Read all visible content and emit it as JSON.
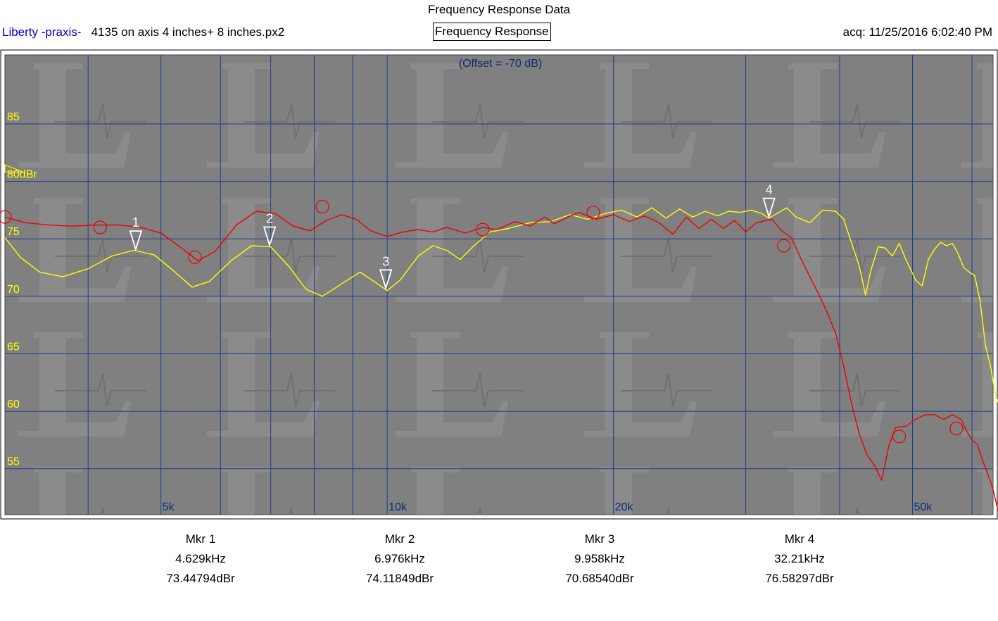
{
  "header": {
    "title": "Frequency Response Data",
    "program": "Liberty -praxis-",
    "file": "4135 on axis 4 inches+ 8 inches.px2",
    "tab_label": "Frequency Response",
    "acq": "acq: 11/25/2016 6:02:40 PM"
  },
  "chart_data": {
    "type": "line",
    "title": "Frequency Response",
    "offset_note": "(Offset = -70 dB)",
    "x_scale": "log",
    "x_unit": "Hz",
    "xlim": [
      3100,
      64000
    ],
    "ylim": [
      51,
      91
    ],
    "x_tick_labels": [
      {
        "x": 5000,
        "label": "5k"
      },
      {
        "x": 10000,
        "label": "10k"
      },
      {
        "x": 20000,
        "label": "20k"
      },
      {
        "x": 50000,
        "label": "50k"
      }
    ],
    "x_gridlines": [
      4000,
      5000,
      6000,
      7000,
      8000,
      9000,
      10000,
      20000,
      30000,
      40000,
      50000,
      60000
    ],
    "y_ticks": [
      {
        "y": 85,
        "label": "85"
      },
      {
        "y": 80,
        "label": "80dBr"
      },
      {
        "y": 75,
        "label": "75"
      },
      {
        "y": 70,
        "label": "70"
      },
      {
        "y": 65,
        "label": "65"
      },
      {
        "y": 60,
        "label": "60"
      },
      {
        "y": 55,
        "label": "55"
      }
    ],
    "reference_level": 81,
    "grid": true,
    "colors": {
      "background": "#808080",
      "grid": "#1c3c8c",
      "y_labels": "#ffff00",
      "x_labels": "#0a2e6e"
    },
    "series": [
      {
        "color": "#ffff00",
        "points": [
          [
            3100,
            75.1
          ],
          [
            3250,
            73.4
          ],
          [
            3450,
            72.1
          ],
          [
            3700,
            71.7
          ],
          [
            4000,
            72.4
          ],
          [
            4300,
            73.5
          ],
          [
            4600,
            74.0
          ],
          [
            4900,
            73.6
          ],
          [
            5200,
            72.2
          ],
          [
            5500,
            70.8
          ],
          [
            5800,
            71.3
          ],
          [
            6200,
            73.1
          ],
          [
            6600,
            74.4
          ],
          [
            7000,
            74.3
          ],
          [
            7400,
            72.6
          ],
          [
            7800,
            70.6
          ],
          [
            8200,
            70.0
          ],
          [
            8700,
            71.1
          ],
          [
            9200,
            72.1
          ],
          [
            9600,
            71.3
          ],
          [
            10000,
            70.5
          ],
          [
            10400,
            71.4
          ],
          [
            11000,
            73.5
          ],
          [
            11500,
            74.4
          ],
          [
            12000,
            74.0
          ],
          [
            12500,
            73.2
          ],
          [
            13000,
            74.3
          ],
          [
            13700,
            75.6
          ],
          [
            14500,
            75.9
          ],
          [
            15500,
            76.4
          ],
          [
            16500,
            76.5
          ],
          [
            17500,
            77.1
          ],
          [
            18500,
            76.7
          ],
          [
            19500,
            77.2
          ],
          [
            20500,
            77.5
          ],
          [
            21500,
            76.9
          ],
          [
            22500,
            77.7
          ],
          [
            23500,
            76.8
          ],
          [
            24500,
            77.6
          ],
          [
            25500,
            76.9
          ],
          [
            26500,
            77.4
          ],
          [
            27500,
            77.0
          ],
          [
            28500,
            77.4
          ],
          [
            29500,
            77.3
          ],
          [
            30500,
            77.5
          ],
          [
            31500,
            77.2
          ],
          [
            32200,
            76.8
          ],
          [
            33000,
            77.2
          ],
          [
            34000,
            77.7
          ],
          [
            35000,
            76.9
          ],
          [
            36500,
            76.4
          ],
          [
            38000,
            77.5
          ],
          [
            39500,
            77.4
          ],
          [
            40500,
            76.7
          ],
          [
            41500,
            74.6
          ],
          [
            42500,
            72.6
          ],
          [
            43300,
            70.1
          ],
          [
            44000,
            72.2
          ],
          [
            45000,
            74.3
          ],
          [
            46000,
            74.2
          ],
          [
            47000,
            73.5
          ],
          [
            48000,
            74.6
          ],
          [
            49000,
            73.2
          ],
          [
            50500,
            71.4
          ],
          [
            51500,
            70.9
          ],
          [
            52500,
            73.2
          ],
          [
            53500,
            74.1
          ],
          [
            54500,
            74.7
          ],
          [
            55500,
            74.4
          ],
          [
            56500,
            74.6
          ],
          [
            57500,
            73.7
          ],
          [
            58500,
            72.5
          ],
          [
            59500,
            72.1
          ],
          [
            60500,
            71.8
          ],
          [
            61500,
            69.6
          ],
          [
            62500,
            65.8
          ],
          [
            63500,
            63.9
          ],
          [
            64500,
            61.4
          ],
          [
            65500,
            60.0
          ],
          [
            66500,
            57.4
          ],
          [
            67000,
            53.8
          ]
        ]
      },
      {
        "color": "#ee0000",
        "points": [
          [
            3100,
            76.9
          ],
          [
            3300,
            76.4
          ],
          [
            3550,
            76.2
          ],
          [
            3800,
            76.1
          ],
          [
            4100,
            76.2
          ],
          [
            4400,
            76.2
          ],
          [
            4700,
            76.0
          ],
          [
            5000,
            75.5
          ],
          [
            5300,
            74.3
          ],
          [
            5600,
            73.1
          ],
          [
            5900,
            73.9
          ],
          [
            6300,
            76.2
          ],
          [
            6700,
            77.4
          ],
          [
            7100,
            77.2
          ],
          [
            7500,
            76.1
          ],
          [
            7900,
            75.7
          ],
          [
            8300,
            76.6
          ],
          [
            8700,
            77.1
          ],
          [
            9100,
            76.7
          ],
          [
            9500,
            75.7
          ],
          [
            10000,
            75.2
          ],
          [
            10500,
            75.6
          ],
          [
            11000,
            75.8
          ],
          [
            11500,
            75.6
          ],
          [
            12000,
            76.0
          ],
          [
            12700,
            75.5
          ],
          [
            13400,
            76.0
          ],
          [
            14000,
            75.8
          ],
          [
            14800,
            76.5
          ],
          [
            15500,
            76.1
          ],
          [
            16200,
            76.9
          ],
          [
            16700,
            76.3
          ],
          [
            17400,
            76.9
          ],
          [
            18000,
            77.3
          ],
          [
            19000,
            76.7
          ],
          [
            20000,
            77.1
          ],
          [
            21000,
            76.5
          ],
          [
            22000,
            77.0
          ],
          [
            23000,
            76.4
          ],
          [
            24000,
            75.4
          ],
          [
            25000,
            76.9
          ],
          [
            26000,
            75.9
          ],
          [
            27000,
            76.7
          ],
          [
            28000,
            75.9
          ],
          [
            29000,
            76.6
          ],
          [
            30000,
            75.6
          ],
          [
            31000,
            76.4
          ],
          [
            32500,
            76.7
          ],
          [
            33500,
            75.7
          ],
          [
            34500,
            75.1
          ],
          [
            35500,
            73.3
          ],
          [
            36500,
            71.7
          ],
          [
            37500,
            70.2
          ],
          [
            38500,
            68.6
          ],
          [
            39500,
            66.8
          ],
          [
            40500,
            63.9
          ],
          [
            41500,
            60.6
          ],
          [
            42500,
            58.0
          ],
          [
            43500,
            56.2
          ],
          [
            44500,
            55.3
          ],
          [
            45500,
            54.0
          ],
          [
            46500,
            57.0
          ],
          [
            47500,
            58.6
          ],
          [
            49000,
            58.7
          ],
          [
            50500,
            59.3
          ],
          [
            52000,
            59.7
          ],
          [
            53500,
            59.7
          ],
          [
            55000,
            59.3
          ],
          [
            56500,
            59.7
          ],
          [
            58000,
            59.3
          ],
          [
            59000,
            58.3
          ],
          [
            60000,
            57.5
          ],
          [
            61000,
            57.1
          ],
          [
            62000,
            55.7
          ],
          [
            63000,
            54.5
          ],
          [
            64000,
            53.2
          ],
          [
            65000,
            51.3
          ]
        ]
      }
    ],
    "markers": [
      {
        "label": "1",
        "freq": 4629
      },
      {
        "label": "2",
        "freq": 6976
      },
      {
        "label": "3",
        "freq": 9958
      },
      {
        "label": "4",
        "freq": 32210
      }
    ],
    "circle_markers": [
      [
        3100,
        76.9
      ],
      [
        4150,
        76.0
      ],
      [
        5550,
        73.4
      ],
      [
        8200,
        77.8
      ],
      [
        13400,
        75.8
      ],
      [
        18800,
        77.3
      ],
      [
        33700,
        74.4
      ],
      [
        48000,
        57.8
      ],
      [
        57200,
        58.5
      ]
    ]
  },
  "marker_readouts": [
    {
      "name": "Mkr 1",
      "freq": "4.629kHz",
      "level": "73.44794dBr"
    },
    {
      "name": "Mkr 2",
      "freq": "6.976kHz",
      "level": "74.11849dBr"
    },
    {
      "name": "Mkr 3",
      "freq": "9.958kHz",
      "level": "70.68540dBr"
    },
    {
      "name": "Mkr 4",
      "freq": "32.21kHz",
      "level": "76.58297dBr"
    }
  ]
}
